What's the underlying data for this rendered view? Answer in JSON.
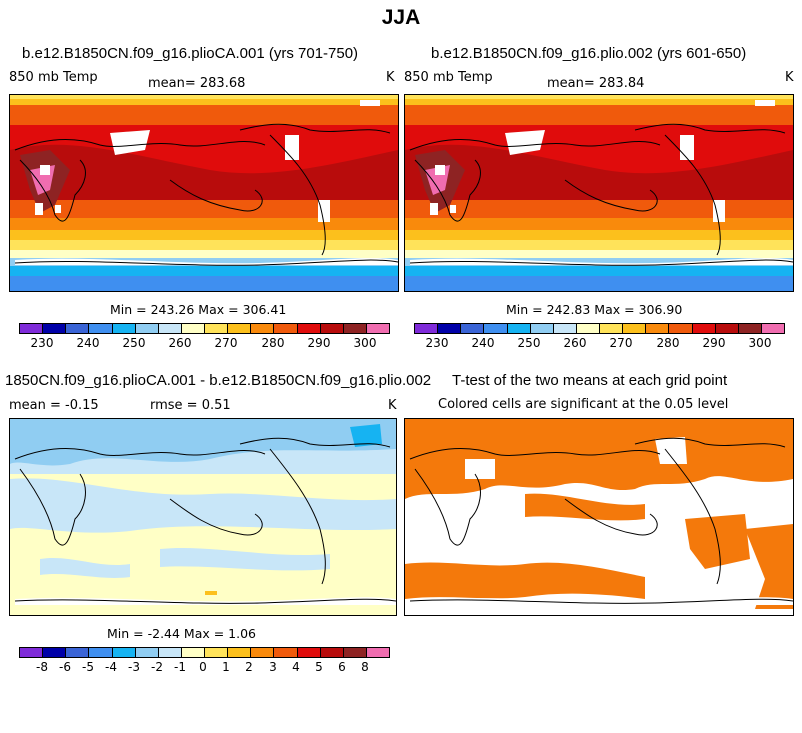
{
  "title": "JJA",
  "colors": {
    "temp_levels": [
      "#7f2bd9",
      "#0000a8",
      "#3a64d6",
      "#3f8ff0",
      "#16b3f2",
      "#90cdf2",
      "#c8e6f8",
      "#ffffc6",
      "#ffe35a",
      "#fcc01c",
      "#f98a0c",
      "#f05a0c",
      "#e00c0c",
      "#b80c0c",
      "#8e2323",
      "#f06db0"
    ],
    "diff_levels": [
      "#7f2bd9",
      "#0000a8",
      "#3a64d6",
      "#3f8ff0",
      "#16b3f2",
      "#90cdf2",
      "#c8e6f8",
      "#ffffc6",
      "#ffe35a",
      "#fcc01c",
      "#f98a0c",
      "#f05a0c",
      "#e00c0c",
      "#b80c0c",
      "#8e2323",
      "#f06db0"
    ],
    "significant": "#f4790b"
  },
  "panels": {
    "p1": {
      "title": "b.e12.B1850CN.f09_g16.plioCA.001 (yrs 701-750)",
      "variable": "850 mb Temp",
      "mean": "mean= 283.68",
      "units": "K",
      "minmax": "Min = 243.26 Max = 306.41"
    },
    "p2": {
      "title": "b.e12.B1850CN.f09_g16.plio.002 (yrs 601-650)",
      "variable": "850 mb Temp",
      "mean": "mean= 283.84",
      "units": "K",
      "minmax": "Min = 242.83 Max = 306.90"
    },
    "p3": {
      "title": "1850CN.f09_g16.plioCA.001 - b.e12.B1850CN.f09_g16.plio.002",
      "mean": "mean =  -0.15",
      "rmse": "rmse =   0.51",
      "units": "K",
      "minmax": "Min =  -2.44 Max =   1.06"
    },
    "p4": {
      "title": "T-test of the two means at each grid point",
      "subtitle": "Colored cells are significant at the 0.05 level"
    }
  },
  "chart_data": [
    {
      "type": "heatmap",
      "title": "b.e12.B1850CN.f09_g16.plioCA.001 (yrs 701-750)",
      "variable": "850 mb Temp",
      "units": "K",
      "mean": 283.68,
      "min": 243.26,
      "max": 306.41,
      "colorbar_labels": [
        "230",
        "240",
        "250",
        "260",
        "270",
        "280",
        "290",
        "300"
      ]
    },
    {
      "type": "heatmap",
      "title": "b.e12.B1850CN.f09_g16.plio.002 (yrs 601-650)",
      "variable": "850 mb Temp",
      "units": "K",
      "mean": 283.84,
      "min": 242.83,
      "max": 306.9,
      "colorbar_labels": [
        "230",
        "240",
        "250",
        "260",
        "270",
        "280",
        "290",
        "300"
      ]
    },
    {
      "type": "heatmap",
      "title": "1850CN.f09_g16.plioCA.001 - b.e12.B1850CN.f09_g16.plio.002",
      "units": "K",
      "mean": -0.15,
      "rmse": 0.51,
      "min": -2.44,
      "max": 1.06,
      "colorbar_labels": [
        "-8",
        "-6",
        "-5",
        "-4",
        "-3",
        "-2",
        "-1",
        "0",
        "1",
        "2",
        "3",
        "4",
        "5",
        "6",
        "8"
      ]
    },
    {
      "type": "heatmap",
      "title": "T-test of the two means at each grid point",
      "subtitle": "Colored cells are significant at the 0.05 level"
    }
  ]
}
